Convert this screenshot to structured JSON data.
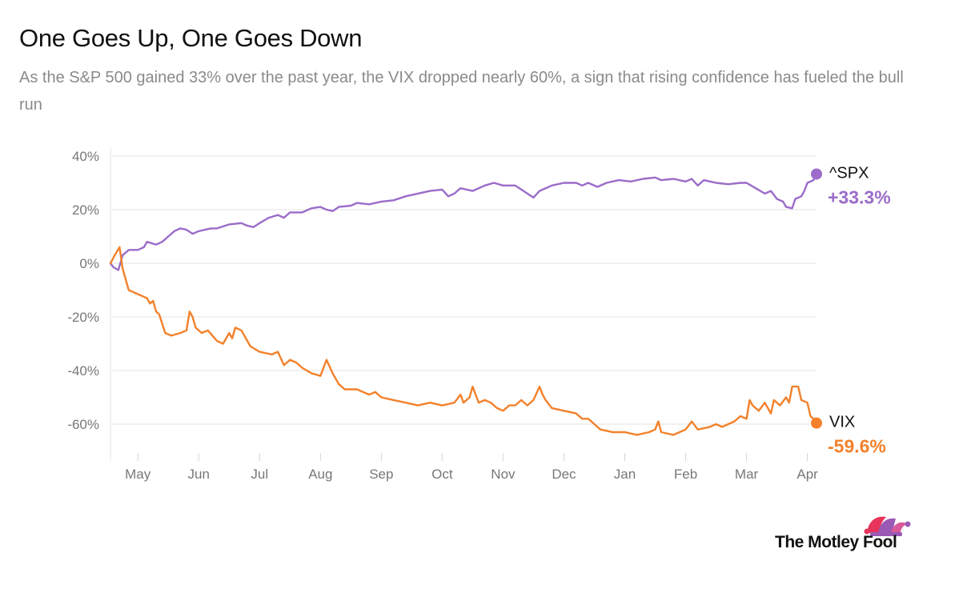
{
  "chart_data": {
    "type": "line",
    "title": "One Goes Up, One Goes Down",
    "subtitle": "As the S&P 500 gained 33% over the past year, the VIX dropped nearly 60%, a sign that rising confidence has fueled the bull run",
    "ylim": [
      -70,
      40
    ],
    "yticks": [
      40,
      20,
      0,
      -20,
      -40,
      -60
    ],
    "ytick_labels": [
      "40%",
      "20%",
      "0%",
      "-20%",
      "-40%",
      "-60%"
    ],
    "xlim": [
      -0.45,
      11.15
    ],
    "x_ticks": [
      0,
      1,
      2,
      3,
      4,
      5,
      6,
      7,
      8,
      9,
      10,
      11
    ],
    "x_tick_labels": [
      "May",
      "Jun",
      "Jul",
      "Aug",
      "Sep",
      "Oct",
      "Nov",
      "Dec",
      "Jan",
      "Feb",
      "Mar",
      "Apr"
    ],
    "grid": true,
    "series": [
      {
        "name": "^SPX",
        "end_label": "+33.3%",
        "color": "#9b6cc9",
        "points": [
          [
            -0.45,
            0
          ],
          [
            -0.4,
            -1.5
          ],
          [
            -0.32,
            -2.5
          ],
          [
            -0.25,
            3
          ],
          [
            -0.15,
            5
          ],
          [
            0,
            5
          ],
          [
            0.1,
            6
          ],
          [
            0.15,
            8
          ],
          [
            0.3,
            7
          ],
          [
            0.4,
            8
          ],
          [
            0.5,
            10
          ],
          [
            0.6,
            12
          ],
          [
            0.7,
            13
          ],
          [
            0.8,
            12.5
          ],
          [
            0.9,
            11
          ],
          [
            1.0,
            12
          ],
          [
            1.2,
            13
          ],
          [
            1.3,
            13
          ],
          [
            1.5,
            14.5
          ],
          [
            1.7,
            15
          ],
          [
            1.8,
            14
          ],
          [
            1.9,
            13.5
          ],
          [
            2.0,
            15
          ],
          [
            2.15,
            17
          ],
          [
            2.3,
            18
          ],
          [
            2.4,
            17
          ],
          [
            2.5,
            19
          ],
          [
            2.7,
            19
          ],
          [
            2.85,
            20.5
          ],
          [
            3.0,
            21
          ],
          [
            3.1,
            20
          ],
          [
            3.2,
            19.5
          ],
          [
            3.3,
            21
          ],
          [
            3.5,
            21.5
          ],
          [
            3.6,
            22.5
          ],
          [
            3.8,
            22
          ],
          [
            4.0,
            23
          ],
          [
            4.2,
            23.5
          ],
          [
            4.4,
            25
          ],
          [
            4.6,
            26
          ],
          [
            4.8,
            27
          ],
          [
            5.0,
            27.5
          ],
          [
            5.1,
            25
          ],
          [
            5.2,
            26
          ],
          [
            5.3,
            28
          ],
          [
            5.5,
            27
          ],
          [
            5.7,
            29
          ],
          [
            5.85,
            30
          ],
          [
            6.0,
            29
          ],
          [
            6.2,
            29
          ],
          [
            6.4,
            26
          ],
          [
            6.5,
            24.5
          ],
          [
            6.6,
            27
          ],
          [
            6.8,
            29
          ],
          [
            7.0,
            30
          ],
          [
            7.2,
            30
          ],
          [
            7.3,
            29
          ],
          [
            7.4,
            30
          ],
          [
            7.55,
            28.5
          ],
          [
            7.7,
            30
          ],
          [
            7.9,
            31
          ],
          [
            8.1,
            30.5
          ],
          [
            8.3,
            31.5
          ],
          [
            8.5,
            32
          ],
          [
            8.6,
            31
          ],
          [
            8.8,
            31.5
          ],
          [
            9.0,
            30.5
          ],
          [
            9.1,
            31.5
          ],
          [
            9.2,
            29
          ],
          [
            9.3,
            31
          ],
          [
            9.5,
            30
          ],
          [
            9.7,
            29.5
          ],
          [
            9.9,
            30
          ],
          [
            10.0,
            30
          ],
          [
            10.15,
            28
          ],
          [
            10.3,
            26
          ],
          [
            10.4,
            27
          ],
          [
            10.5,
            24
          ],
          [
            10.6,
            23
          ],
          [
            10.65,
            21
          ],
          [
            10.75,
            20.5
          ],
          [
            10.8,
            24
          ],
          [
            10.9,
            25
          ],
          [
            10.95,
            27
          ],
          [
            11.0,
            30
          ],
          [
            11.1,
            31
          ],
          [
            11.15,
            33.3
          ]
        ]
      },
      {
        "name": "VIX",
        "end_label": "-59.6%",
        "color": "#f3812b",
        "points": [
          [
            -0.45,
            0
          ],
          [
            -0.38,
            3
          ],
          [
            -0.3,
            6
          ],
          [
            -0.25,
            -2
          ],
          [
            -0.15,
            -10
          ],
          [
            -0.05,
            -11
          ],
          [
            0.05,
            -12
          ],
          [
            0.15,
            -13
          ],
          [
            0.2,
            -15
          ],
          [
            0.25,
            -14
          ],
          [
            0.3,
            -18
          ],
          [
            0.35,
            -19
          ],
          [
            0.45,
            -26
          ],
          [
            0.55,
            -27
          ],
          [
            0.7,
            -26
          ],
          [
            0.8,
            -25
          ],
          [
            0.85,
            -18
          ],
          [
            0.9,
            -20
          ],
          [
            0.95,
            -24
          ],
          [
            1.05,
            -26
          ],
          [
            1.15,
            -25
          ],
          [
            1.3,
            -29
          ],
          [
            1.4,
            -30
          ],
          [
            1.5,
            -26
          ],
          [
            1.55,
            -28
          ],
          [
            1.6,
            -24
          ],
          [
            1.7,
            -25
          ],
          [
            1.85,
            -31
          ],
          [
            2.0,
            -33
          ],
          [
            2.2,
            -34
          ],
          [
            2.3,
            -33
          ],
          [
            2.4,
            -38
          ],
          [
            2.5,
            -36
          ],
          [
            2.6,
            -37
          ],
          [
            2.7,
            -39
          ],
          [
            2.85,
            -41
          ],
          [
            3.0,
            -42
          ],
          [
            3.1,
            -36
          ],
          [
            3.2,
            -41
          ],
          [
            3.3,
            -45
          ],
          [
            3.4,
            -47
          ],
          [
            3.6,
            -47
          ],
          [
            3.8,
            -49
          ],
          [
            3.9,
            -48
          ],
          [
            4.0,
            -50
          ],
          [
            4.2,
            -51
          ],
          [
            4.4,
            -52
          ],
          [
            4.6,
            -53
          ],
          [
            4.8,
            -52
          ],
          [
            5.0,
            -53
          ],
          [
            5.2,
            -52
          ],
          [
            5.3,
            -49
          ],
          [
            5.35,
            -52
          ],
          [
            5.45,
            -50
          ],
          [
            5.5,
            -46
          ],
          [
            5.6,
            -52
          ],
          [
            5.7,
            -51
          ],
          [
            5.8,
            -52
          ],
          [
            5.9,
            -54
          ],
          [
            6.0,
            -55
          ],
          [
            6.1,
            -53
          ],
          [
            6.2,
            -53
          ],
          [
            6.3,
            -51
          ],
          [
            6.4,
            -53
          ],
          [
            6.5,
            -51
          ],
          [
            6.6,
            -46
          ],
          [
            6.65,
            -49
          ],
          [
            6.7,
            -51
          ],
          [
            6.8,
            -54
          ],
          [
            7.0,
            -55
          ],
          [
            7.2,
            -56
          ],
          [
            7.3,
            -58
          ],
          [
            7.4,
            -58
          ],
          [
            7.5,
            -60
          ],
          [
            7.6,
            -62
          ],
          [
            7.8,
            -63
          ],
          [
            8.0,
            -63
          ],
          [
            8.2,
            -64
          ],
          [
            8.4,
            -63
          ],
          [
            8.5,
            -62
          ],
          [
            8.55,
            -59
          ],
          [
            8.6,
            -63
          ],
          [
            8.8,
            -64
          ],
          [
            8.9,
            -63
          ],
          [
            9.0,
            -62
          ],
          [
            9.1,
            -59
          ],
          [
            9.2,
            -62
          ],
          [
            9.4,
            -61
          ],
          [
            9.5,
            -60
          ],
          [
            9.6,
            -61
          ],
          [
            9.7,
            -60
          ],
          [
            9.8,
            -59
          ],
          [
            9.9,
            -57
          ],
          [
            10.0,
            -58
          ],
          [
            10.05,
            -51
          ],
          [
            10.1,
            -53
          ],
          [
            10.2,
            -55
          ],
          [
            10.3,
            -52
          ],
          [
            10.4,
            -56
          ],
          [
            10.45,
            -51
          ],
          [
            10.55,
            -53
          ],
          [
            10.65,
            -50
          ],
          [
            10.7,
            -52
          ],
          [
            10.75,
            -46
          ],
          [
            10.85,
            -46
          ],
          [
            10.9,
            -51
          ],
          [
            11.0,
            -52
          ],
          [
            11.05,
            -57
          ],
          [
            11.1,
            -58
          ],
          [
            11.15,
            -59.6
          ]
        ]
      }
    ]
  },
  "logo": {
    "text": "The Motley Fool",
    "colors": [
      "#e8345b",
      "#9b59b6",
      "#d95a9a"
    ]
  }
}
